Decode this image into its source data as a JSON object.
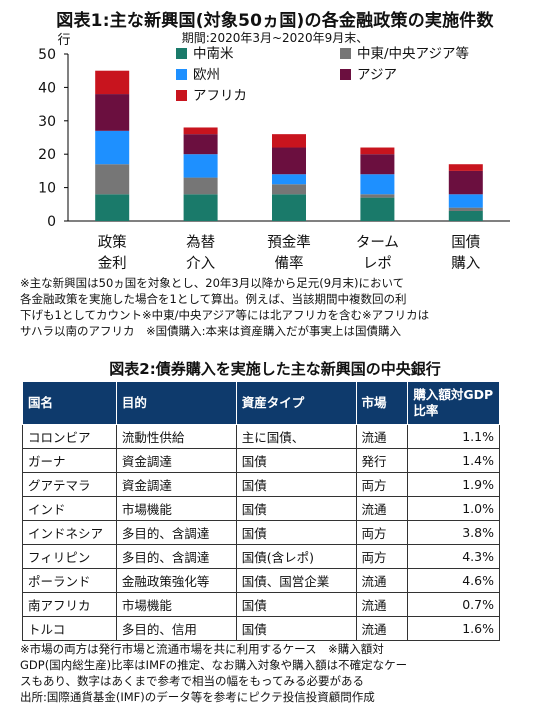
{
  "chart_data": {
    "type": "bar",
    "stacked": true,
    "title": "図表1:主な新興国(対象50ヵ国)の各金融政策の実施件数",
    "subtitle": "期間:2020年3月~2020年9月末、",
    "ylabel": "行",
    "ylim": [
      0,
      50
    ],
    "yticks": [
      0,
      10,
      20,
      30,
      40,
      50
    ],
    "categories": [
      [
        "政策",
        "金利"
      ],
      [
        "為替",
        "介入"
      ],
      [
        "預金準",
        "備率"
      ],
      [
        "ターム",
        "レポ"
      ],
      [
        "国債",
        "購入"
      ]
    ],
    "series": [
      {
        "name": "中南米",
        "color": "#1a7a6a",
        "values": [
          8,
          8,
          8,
          7,
          3
        ]
      },
      {
        "name": "中東/中央アジア等",
        "color": "#767676",
        "values": [
          9,
          5,
          3,
          1,
          1
        ]
      },
      {
        "name": "欧州",
        "color": "#1e90ff",
        "values": [
          10,
          7,
          3,
          6,
          4
        ]
      },
      {
        "name": "アジア",
        "color": "#6b0f3f",
        "values": [
          11,
          6,
          8,
          6,
          7
        ]
      },
      {
        "name": "アフリカ",
        "color": "#c8141e",
        "values": [
          7,
          2,
          4,
          2,
          2
        ]
      }
    ],
    "legend_placement": "top",
    "grid": false
  },
  "note1": [
    "※主な新興国は50ヵ国を対象とし、20年3月以降から足元(9月末)において",
    "各金融政策を実施した場合を1として算出。例えば、当該期間中複数回の利",
    "下げも1としてカウント※中東/中央アジア等には北アフリカを含む※アフリカは",
    "サハラ以南のアフリカ　※国債購入:本来は資産購入だが事実上は国債購入"
  ],
  "table": {
    "title": "図表2:債券購入を実施した主な新興国の中央銀行",
    "headers": [
      "国名",
      "目的",
      "資産タイプ",
      "市場",
      "購入額対GDP比率"
    ],
    "header_color": "#0e3a6c",
    "rows": [
      [
        "コロンビア",
        "流動性供給",
        "主に国債、",
        "流通",
        "1.1%"
      ],
      [
        "ガーナ",
        "資金調達",
        "国債",
        "発行",
        "1.4%"
      ],
      [
        "グアテマラ",
        "資金調達",
        "国債",
        "両方",
        "1.9%"
      ],
      [
        "インド",
        "市場機能",
        "国債",
        "流通",
        "1.0%"
      ],
      [
        "インドネシア",
        "多目的、含調達",
        "国債",
        "両方",
        "3.8%"
      ],
      [
        "フィリピン",
        "多目的、含調達",
        "国債(含レポ)",
        "両方",
        "4.3%"
      ],
      [
        "ポーランド",
        "金融政策強化等",
        "国債、国営企業",
        "流通",
        "4.6%"
      ],
      [
        "南アフリカ",
        "市場機能",
        "国債",
        "流通",
        "0.7%"
      ],
      [
        "トルコ",
        "多目的、信用",
        "国債",
        "流通",
        "1.6%"
      ]
    ]
  },
  "note2": [
    "※市場の両方は発行市場と流通市場を共に利用するケース　※購入額対",
    "GDP(国内総生産)比率はIMFの推定、なお購入対象や購入額は不確定なケー",
    "スもあり、数字はあくまで参考で相当の幅をもってみる必要がある",
    "出所:国際通貨基金(IMF)のデータ等を参考にピクテ投信投資顧問作成"
  ]
}
